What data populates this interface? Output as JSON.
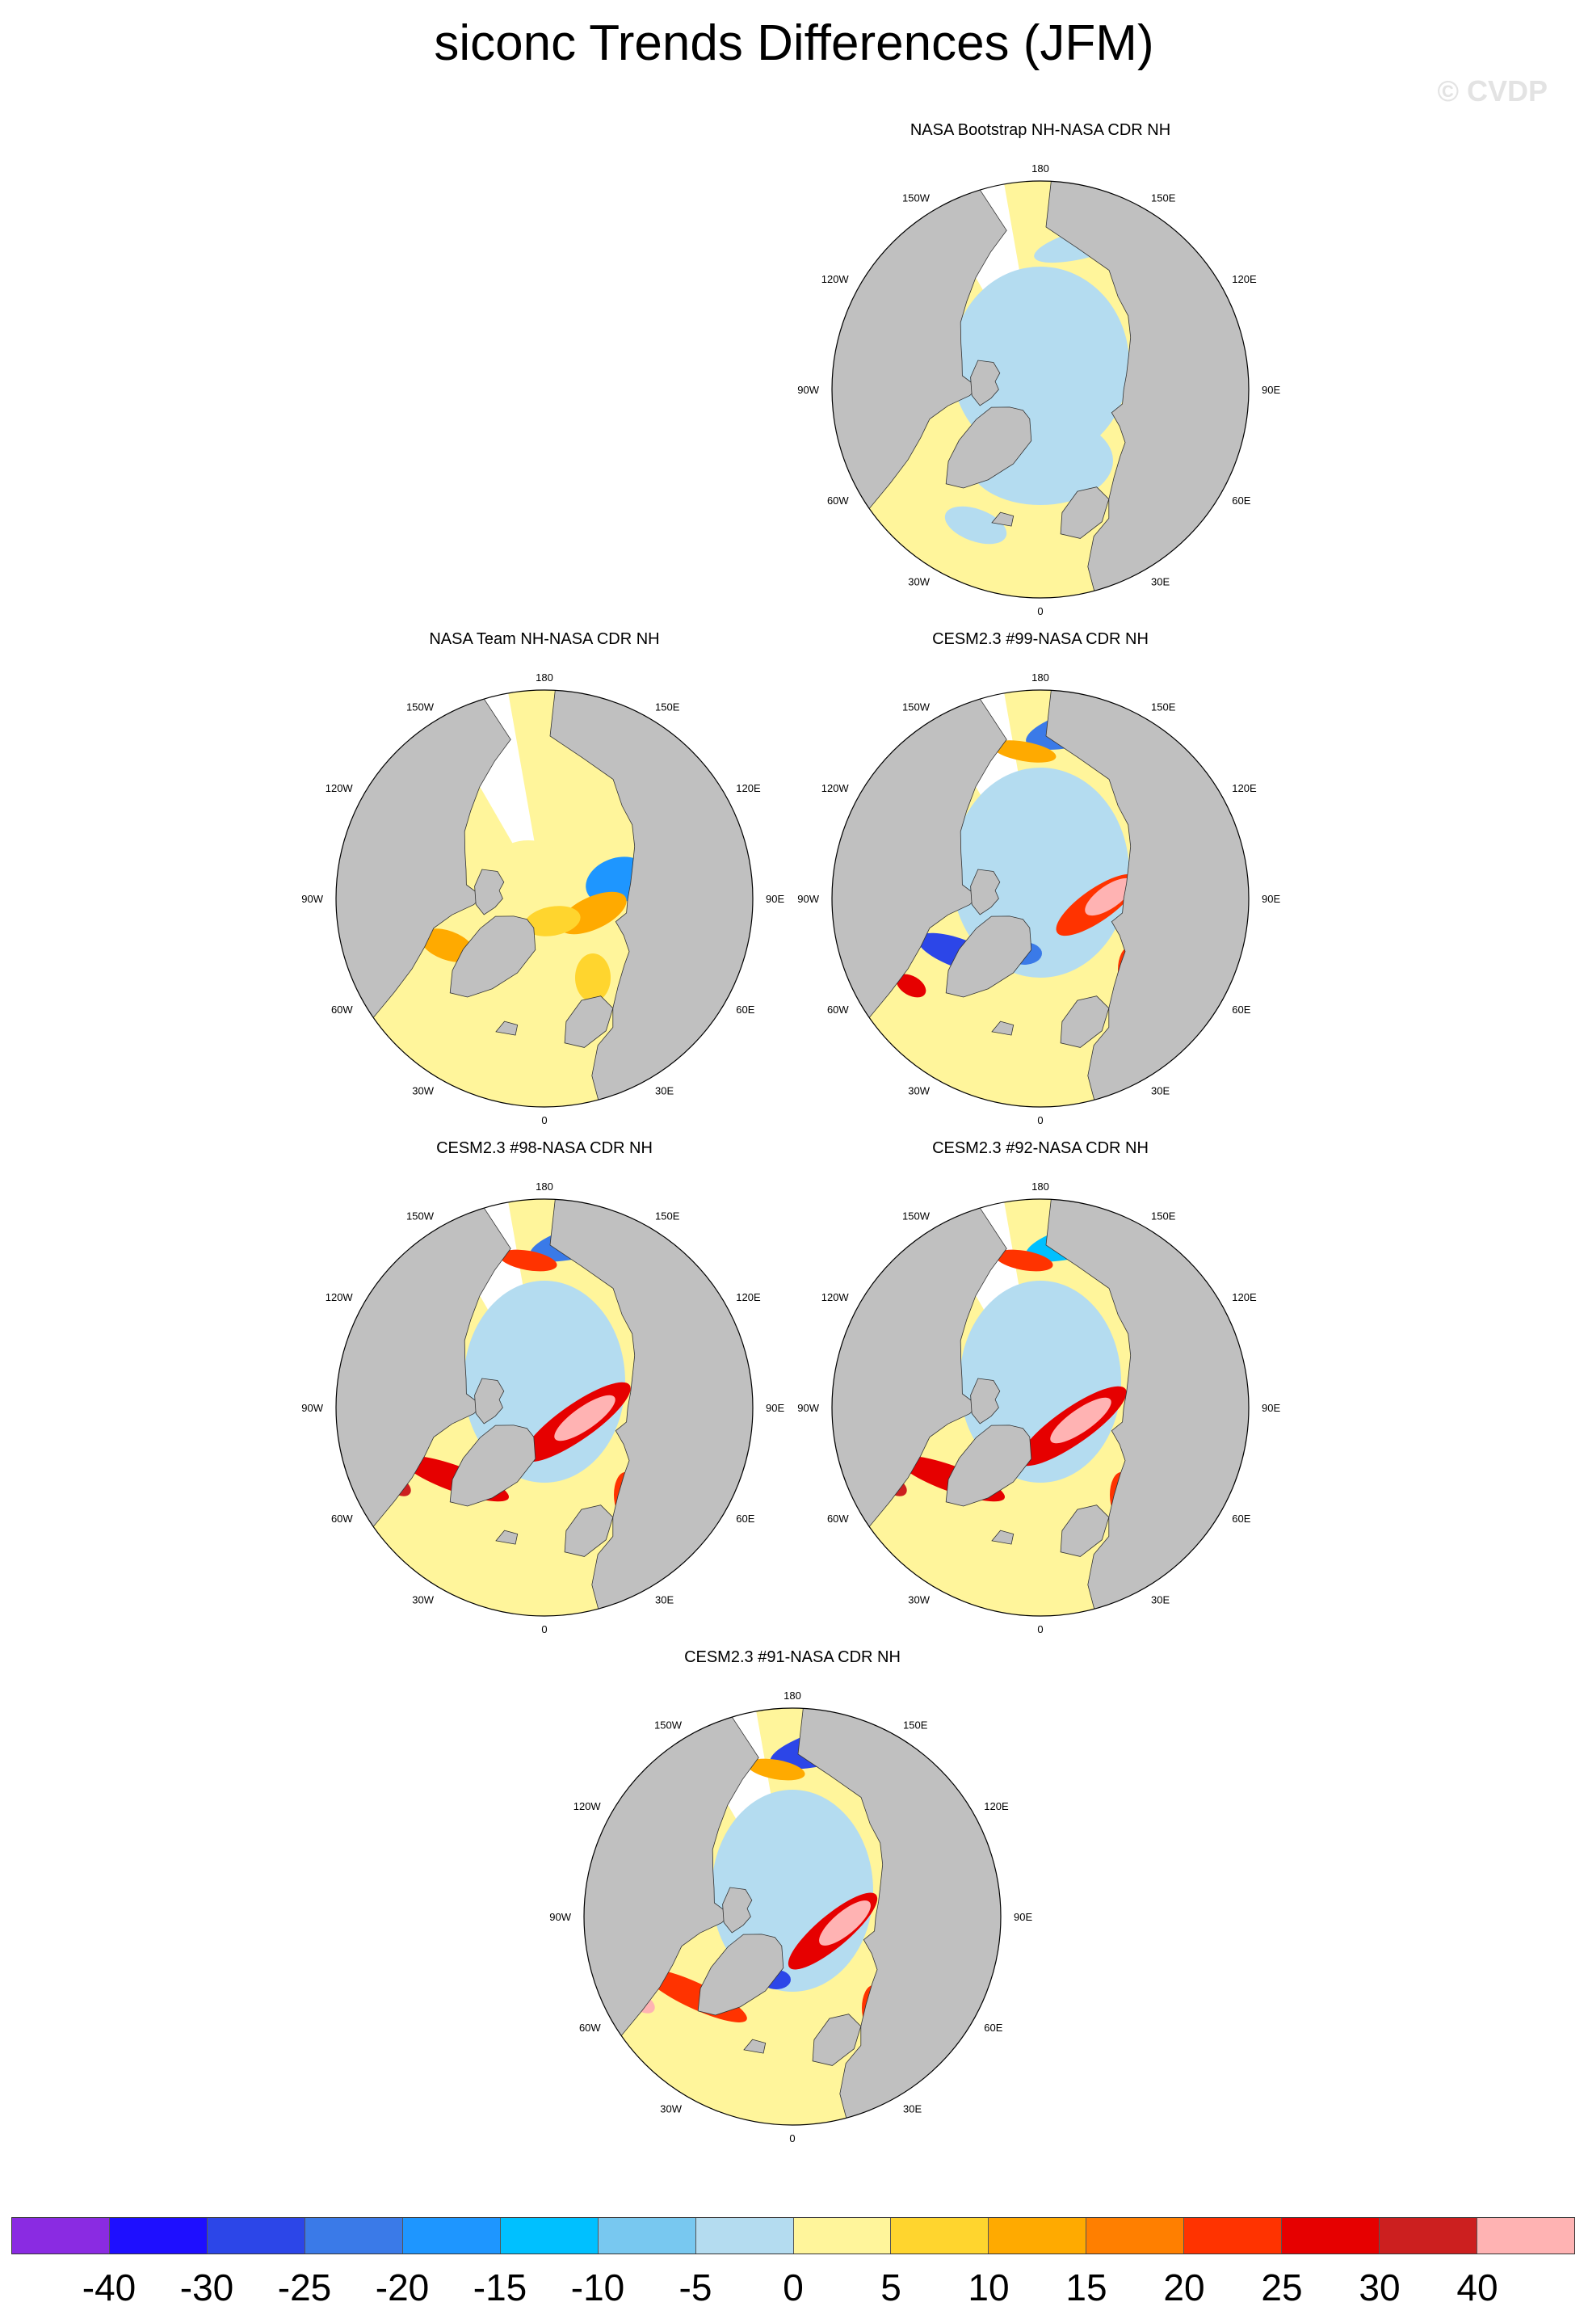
{
  "title": "siconc Trends Differences (JFM)",
  "watermark": "© CVDP",
  "longitude_labels": [
    "180",
    "150E",
    "120E",
    "90E",
    "60E",
    "30E",
    "0",
    "30W",
    "60W",
    "90W",
    "120W",
    "150W"
  ],
  "panels": [
    {
      "title": "NASA Bootstrap NH-NASA CDR NH",
      "pattern": "bootstrap"
    },
    {
      "title": "NASA Team NH-NASA CDR NH",
      "pattern": "team"
    },
    {
      "title": "CESM2.3 #99-NASA CDR NH",
      "pattern": "model99"
    },
    {
      "title": "CESM2.3 #98-NASA CDR NH",
      "pattern": "model98"
    },
    {
      "title": "CESM2.3 #92-NASA CDR NH",
      "pattern": "model92"
    },
    {
      "title": "CESM2.3 #91-NASA CDR NH",
      "pattern": "model91"
    }
  ],
  "colorbar": {
    "colors": [
      "#8a2be2",
      "#1e0fff",
      "#2c46e8",
      "#3a7ae8",
      "#1e96ff",
      "#00c0ff",
      "#78c8f0",
      "#b4dcf0",
      "#fff59b",
      "#ffd52e",
      "#ffaa00",
      "#ff7f00",
      "#ff3300",
      "#e60000",
      "#cc1f1f",
      "#ffb3b3"
    ],
    "labels": [
      "-40",
      "-30",
      "-25",
      "-20",
      "-15",
      "-10",
      "-5",
      "0",
      "5",
      "10",
      "15",
      "20",
      "25",
      "30",
      "40"
    ]
  },
  "colors": {
    "land": "#c0c0c0",
    "ocean_zero": "#fff59b",
    "ice_light_blue": "#b4dcf0",
    "boundary": "#000000"
  }
}
